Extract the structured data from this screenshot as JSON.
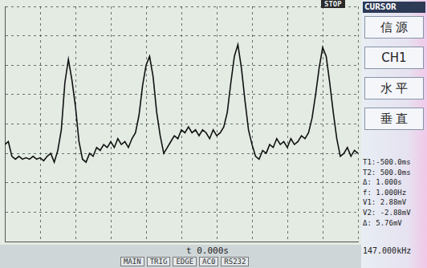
{
  "chart_data": {
    "type": "line",
    "x": [
      0.0,
      0.1,
      0.2,
      0.3,
      0.4,
      0.5,
      0.6,
      0.7,
      0.8,
      0.9,
      1.0,
      1.1,
      1.2,
      1.3,
      1.4,
      1.5,
      1.6,
      1.7,
      1.8,
      1.9,
      2.0,
      2.1,
      2.2,
      2.3,
      2.4,
      2.5,
      2.6,
      2.7,
      2.8,
      2.9,
      3.0,
      3.1,
      3.2,
      3.3,
      3.4,
      3.5,
      3.6,
      3.7,
      3.8,
      3.9,
      4.0,
      4.1,
      4.2,
      4.3,
      4.4,
      4.5,
      4.6,
      4.7,
      4.8,
      4.9,
      5.0,
      5.1,
      5.2,
      5.3,
      5.4,
      5.5,
      5.6,
      5.7,
      5.8,
      5.9,
      6.0,
      6.1,
      6.2,
      6.3,
      6.4,
      6.5,
      6.6,
      6.7,
      6.8,
      6.9,
      7.0,
      7.1,
      7.2,
      7.3,
      7.4,
      7.5,
      7.6,
      7.7,
      7.8,
      7.9,
      8.0,
      8.1,
      8.2,
      8.3,
      8.4,
      8.5,
      8.6,
      8.7,
      8.8,
      8.9,
      9.0,
      9.1,
      9.2,
      9.3,
      9.4,
      9.5,
      9.6,
      9.7,
      9.8,
      9.9,
      10.0
    ],
    "values": [
      -0.7,
      -0.6,
      -1.1,
      -1.2,
      -1.1,
      -1.2,
      -1.15,
      -1.2,
      -1.1,
      -1.2,
      -1.15,
      -1.25,
      -1.1,
      -1.0,
      -1.3,
      -0.9,
      -0.2,
      1.4,
      2.2,
      1.5,
      0.6,
      -0.6,
      -1.2,
      -1.3,
      -1.0,
      -1.1,
      -0.8,
      -0.9,
      -0.7,
      -0.8,
      -0.6,
      -0.8,
      -0.5,
      -0.7,
      -0.6,
      -0.8,
      -0.5,
      -0.3,
      0.3,
      1.3,
      2.0,
      2.3,
      1.6,
      0.4,
      -0.4,
      -1.0,
      -0.8,
      -0.6,
      -0.4,
      -0.5,
      -0.2,
      -0.3,
      -0.1,
      -0.3,
      -0.2,
      -0.4,
      -0.2,
      -0.3,
      -0.5,
      -0.2,
      -0.4,
      -0.3,
      -0.1,
      0.4,
      1.4,
      2.3,
      2.7,
      1.9,
      0.8,
      -0.2,
      -0.7,
      -1.1,
      -1.2,
      -0.9,
      -1.0,
      -0.7,
      -0.8,
      -0.5,
      -0.7,
      -0.6,
      -0.8,
      -0.5,
      -0.7,
      -0.6,
      -0.4,
      -0.5,
      -0.3,
      0.2,
      1.0,
      1.9,
      2.6,
      2.3,
      1.4,
      0.4,
      -0.5,
      -1.1,
      -1.0,
      -0.8,
      -1.1,
      -0.9,
      -1.0
    ],
    "color": "#111111",
    "marker": "none",
    "line_style": "solid",
    "xlim": [
      0,
      10
    ],
    "xticks": [
      0,
      1,
      2,
      3,
      4,
      5,
      6,
      7,
      8,
      9,
      10
    ],
    "ylim": [
      -4,
      4
    ],
    "yticks": [
      -4,
      -3,
      -2,
      -1,
      0,
      1,
      2,
      3,
      4
    ],
    "grid": true,
    "tick_labels": false
  },
  "status": "STOP",
  "panel": {
    "title": "CURSOR",
    "items": [
      "信 源",
      "CH1",
      "水 平",
      "垂 直"
    ],
    "readouts": [
      "T1:-500.0ms",
      "T2: 500.0ms",
      "Δ: 1.000s",
      "f: 1.000Hz",
      "V1: 2.88mV",
      "V2: -2.88mV",
      "Δ: 5.76mV"
    ]
  },
  "bottom": {
    "time": "t 0.000s",
    "frequency": "147.000kHz",
    "menu": [
      "MAIN",
      "TRIG",
      "EDGE",
      "AC0",
      "RS232"
    ]
  }
}
